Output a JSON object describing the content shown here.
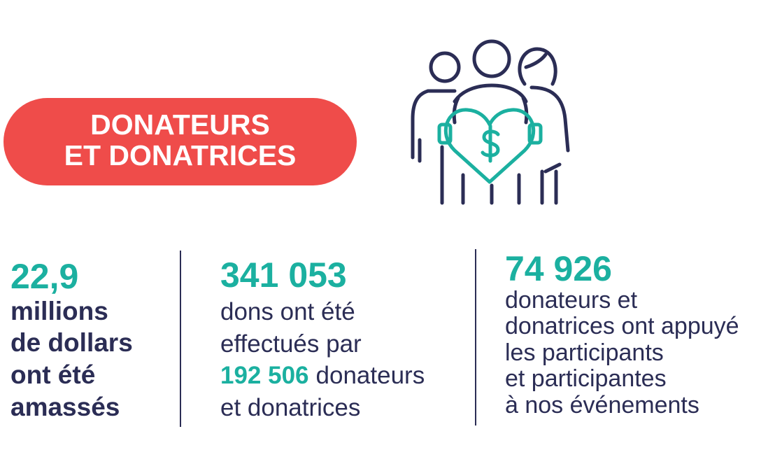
{
  "badge": {
    "lines": [
      "DONATEURS",
      "ET DONATRICES"
    ]
  },
  "stats": [
    {
      "number": "22,9",
      "lines": [
        "millions",
        "de dollars",
        "ont été",
        "amassés"
      ]
    },
    {
      "number": "341 053",
      "lines": [
        "dons ont été",
        "effectués par"
      ],
      "highlight": "192 506",
      "highlight_rest": "donateurs",
      "last_line": "et donatrices"
    },
    {
      "number": "74 926",
      "lines": [
        "donateurs et",
        "donatrices ont appuyé",
        "les participants",
        "et participantes",
        "à nos événements"
      ]
    }
  ]
}
